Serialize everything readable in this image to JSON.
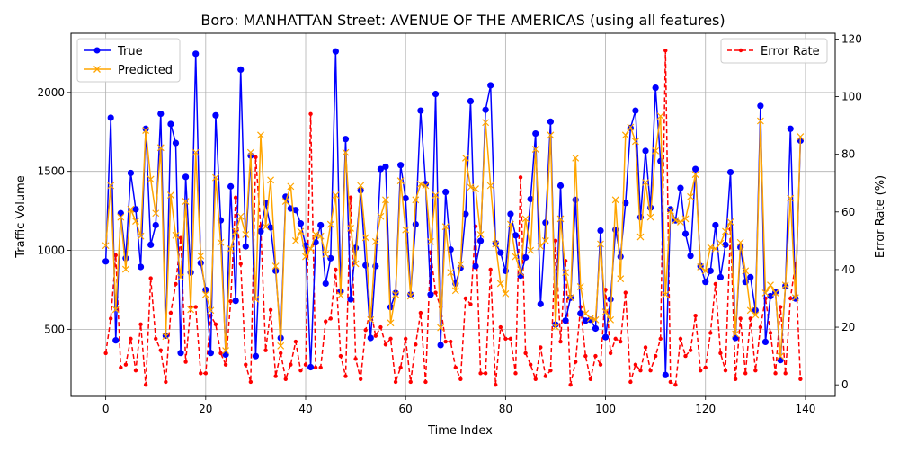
{
  "chart_data": {
    "type": "line",
    "title": "Boro: MANHATTAN Street: AVENUE OF THE AMERICAS (using all features)",
    "xlabel": "Time Index",
    "ylabel": "Traffic Volume",
    "y2label": "Error Rate (%)",
    "xlim": [
      -6.95,
      145.95
    ],
    "ylim": [
      75,
      2375
    ],
    "y2lim": [
      -4,
      122
    ],
    "xticks": [
      "0",
      "20",
      "40",
      "60",
      "80",
      "100",
      "120",
      "140"
    ],
    "yticks": [
      "500",
      "1000",
      "1500",
      "2000"
    ],
    "y2ticks": [
      "0",
      "20",
      "40",
      "60",
      "80",
      "100",
      "120"
    ],
    "grid": true,
    "legend_left_position": "upper-left",
    "legend_right_position": "upper-right",
    "series": [
      {
        "name": "True",
        "axis": "left",
        "color": "#0000ff",
        "marker": "circle",
        "values": [
          930,
          1840,
          430,
          1235,
          950,
          1490,
          1260,
          895,
          1770,
          1035,
          1160,
          1865,
          460,
          1800,
          1680,
          350,
          1465,
          860,
          2245,
          920,
          750,
          350,
          1855,
          1190,
          340,
          1405,
          680,
          2145,
          1025,
          1600,
          330,
          1120,
          1300,
          1145,
          870,
          445,
          1340,
          1265,
          1255,
          1170,
          1030,
          260,
          1050,
          1160,
          790,
          950,
          2260,
          740,
          1705,
          690,
          1015,
          1380,
          905,
          445,
          900,
          1515,
          1530,
          640,
          730,
          1540,
          1330,
          720,
          1165,
          1885,
          1420,
          720,
          1990,
          400,
          1370,
          1005,
          790,
          890,
          1230,
          1945,
          900,
          1060,
          1890,
          2045,
          1045,
          985,
          870,
          1230,
          1095,
          840,
          955,
          1325,
          1740,
          660,
          1175,
          1815,
          530,
          1410,
          555,
          700,
          1320,
          600,
          555,
          560,
          505,
          1125,
          450,
          690,
          1130,
          960,
          1300,
          1775,
          1885,
          1210,
          1630,
          1270,
          2030,
          1565,
          210,
          1260,
          1190,
          1395,
          1105,
          965,
          1515,
          900,
          800,
          870,
          1160,
          830,
          1035,
          1495,
          445,
          1020,
          800,
          830,
          620,
          1915,
          420,
          710,
          735,
          305,
          775,
          1770,
          695,
          1695
        ]
      },
      {
        "name": "Predicted",
        "axis": "left",
        "color": "#ffa500",
        "marker": "x",
        "values": [
          1030,
          1410,
          625,
          1210,
          880,
          1260,
          1185,
          1090,
          1760,
          1450,
          1235,
          1650,
          455,
          1350,
          1095,
          830,
          1310,
          625,
          1620,
          965,
          720,
          620,
          1460,
          1050,
          365,
          1010,
          1120,
          1215,
          1100,
          1620,
          690,
          1730,
          1150,
          1445,
          900,
          395,
          1310,
          1405,
          1060,
          1120,
          960,
          1010,
          1100,
          1090,
          975,
          1165,
          1350,
          715,
          1620,
          1140,
          915,
          1410,
          1080,
          560,
          1055,
          1215,
          1320,
          540,
          720,
          1440,
          1130,
          710,
          1320,
          1420,
          1410,
          1055,
          1350,
          510,
          1150,
          860,
          745,
          910,
          1585,
          1400,
          1390,
          1100,
          1810,
          1410,
          1040,
          790,
          725,
          1165,
          960,
          860,
          1200,
          1000,
          1640,
          1025,
          1060,
          1730,
          515,
          1200,
          860,
          700,
          1585,
          770,
          600,
          570,
          560,
          1040,
          610,
          560,
          1320,
          820,
          1730,
          1780,
          1690,
          1085,
          1430,
          1210,
          1630,
          1850,
          720,
          1250,
          1190,
          1180,
          1200,
          1340,
          1480,
          895,
          870,
          1020,
          1010,
          1045,
          1120,
          1180,
          470,
          1050,
          870,
          620,
          590,
          1820,
          730,
          780,
          730,
          330,
          780,
          1330,
          700,
          1720
        ]
      },
      {
        "name": "Error Rate",
        "axis": "right",
        "color": "#ff0000",
        "marker": "dot",
        "linestyle": "dashed",
        "values": [
          11,
          23,
          45,
          6,
          7,
          16,
          5,
          21,
          0,
          37,
          16,
          12,
          1,
          25,
          35,
          51,
          8,
          27,
          27,
          4,
          4,
          24,
          21,
          11,
          7,
          29,
          65,
          42,
          7,
          1,
          79,
          55,
          12,
          26,
          3,
          11,
          2,
          7,
          15,
          5,
          7,
          94,
          6,
          6,
          22,
          23,
          40,
          10,
          3,
          65,
          9,
          2,
          19,
          26,
          17,
          20,
          14,
          16,
          1,
          6,
          16,
          1,
          14,
          25,
          1,
          46,
          32,
          27,
          15,
          15,
          6,
          2,
          30,
          28,
          55,
          4,
          4,
          40,
          0,
          20,
          16,
          16,
          4,
          72,
          11,
          7,
          2,
          13,
          3,
          5,
          50,
          15,
          43,
          0,
          8,
          27,
          10,
          2,
          10,
          7,
          33,
          11,
          16,
          15,
          32,
          1,
          7,
          5,
          13,
          5,
          10,
          16,
          116,
          1,
          0,
          16,
          10,
          12,
          24,
          5,
          6,
          18,
          35,
          11,
          5,
          54,
          2,
          23,
          4,
          23,
          5,
          20,
          30,
          18,
          4,
          27,
          4,
          30,
          42,
          2
        ]
      }
    ]
  }
}
